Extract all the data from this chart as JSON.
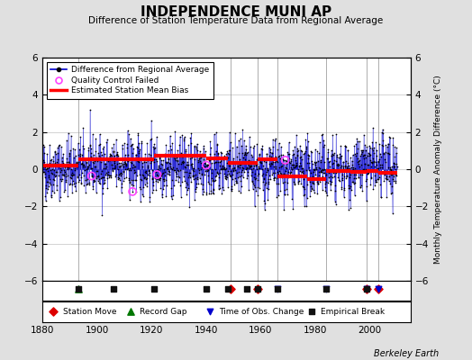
{
  "title": "INDEPENDENCE MUNI AP",
  "subtitle": "Difference of Station Temperature Data from Regional Average",
  "ylabel": "Monthly Temperature Anomaly Difference (°C)",
  "credit": "Berkeley Earth",
  "xlim": [
    1880,
    2015
  ],
  "ylim": [
    -6,
    6
  ],
  "yticks": [
    -6,
    -4,
    -2,
    0,
    2,
    4,
    6
  ],
  "xticks": [
    1880,
    1900,
    1920,
    1940,
    1960,
    1980,
    2000
  ],
  "bg_color": "#e0e0e0",
  "plot_bg_color": "#ffffff",
  "line_color": "#0000cc",
  "marker_color": "#000000",
  "bias_color": "#ff0000",
  "qc_color": "#ff44ff",
  "station_move_color": "#dd0000",
  "record_gap_color": "#007700",
  "tobs_color": "#0000cc",
  "emp_break_color": "#111111",
  "seed": 42,
  "start_year": 1880,
  "end_year": 2010,
  "bias_segments": [
    {
      "start": 1880,
      "end": 1893,
      "value": 0.2
    },
    {
      "start": 1893,
      "end": 1921,
      "value": 0.55
    },
    {
      "start": 1921,
      "end": 1940,
      "value": 0.75
    },
    {
      "start": 1940,
      "end": 1948,
      "value": 0.6
    },
    {
      "start": 1948,
      "end": 1959,
      "value": 0.35
    },
    {
      "start": 1959,
      "end": 1966,
      "value": 0.55
    },
    {
      "start": 1966,
      "end": 1977,
      "value": -0.4
    },
    {
      "start": 1977,
      "end": 1984,
      "value": -0.55
    },
    {
      "start": 1984,
      "end": 1993,
      "value": -0.1
    },
    {
      "start": 1993,
      "end": 1999,
      "value": -0.15
    },
    {
      "start": 1999,
      "end": 2003,
      "value": -0.1
    },
    {
      "start": 2003,
      "end": 2010,
      "value": -0.2
    }
  ],
  "vertical_lines": [
    1893,
    1949,
    1959,
    1966,
    1984,
    1999,
    2003
  ],
  "station_moves": [
    1949,
    1959,
    1999,
    2003
  ],
  "record_gaps": [
    1893
  ],
  "tobs_changes": [
    1966,
    1984,
    1999,
    2003
  ],
  "emp_breaks": [
    1893,
    1906,
    1921,
    1940,
    1948,
    1955,
    1959,
    1966,
    1984,
    1999
  ],
  "qc_failed_approx": [
    1898,
    1913,
    1922,
    1940,
    1969
  ]
}
